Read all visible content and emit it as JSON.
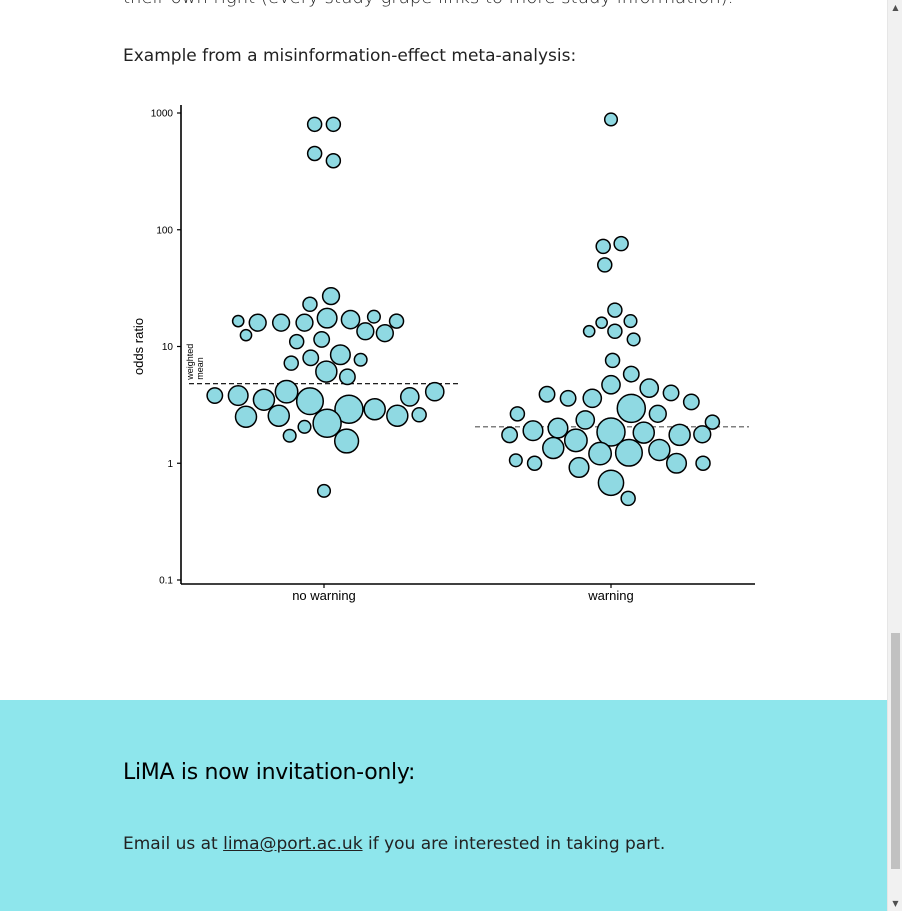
{
  "intro": {
    "cut_text": "their own right (every study-grape links to more study information).",
    "example_text": "Example from a misinformation-effect meta-analysis:"
  },
  "chart_data": {
    "type": "scatter",
    "ylabel": "odds ratio",
    "yscale": "log",
    "ylim": [
      0.1,
      1000
    ],
    "yticks": [
      0.1,
      1,
      10,
      100,
      1000
    ],
    "ytick_labels": [
      "0.1",
      "1",
      "10",
      "100",
      "1000"
    ],
    "categories": [
      "no warning",
      "warning"
    ],
    "colors": {
      "point_fill": "#8fd9e2",
      "point_stroke": "#000000"
    },
    "annotation": "weighted mean",
    "weighted_means": [
      4.8,
      2.05
    ],
    "groups": [
      {
        "category": "no warning",
        "points": [
          {
            "offset": -0.12,
            "y": 800,
            "w": 1
          },
          {
            "offset": 0.12,
            "y": 800,
            "w": 1
          },
          {
            "offset": -0.12,
            "y": 450,
            "w": 1
          },
          {
            "offset": 0.12,
            "y": 390,
            "w": 1
          },
          {
            "offset": 0.09,
            "y": 27,
            "w": 1.2
          },
          {
            "offset": -0.18,
            "y": 23,
            "w": 1
          },
          {
            "offset": -1.1,
            "y": 16.5,
            "w": 0.8
          },
          {
            "offset": -0.85,
            "y": 16,
            "w": 1.2
          },
          {
            "offset": -0.55,
            "y": 16,
            "w": 1.2
          },
          {
            "offset": -0.25,
            "y": 16,
            "w": 1.2
          },
          {
            "offset": 0.04,
            "y": 17.5,
            "w": 1.4
          },
          {
            "offset": 0.34,
            "y": 17,
            "w": 1.3
          },
          {
            "offset": 0.64,
            "y": 18,
            "w": 0.9
          },
          {
            "offset": 0.93,
            "y": 16.5,
            "w": 1
          },
          {
            "offset": -1.0,
            "y": 12.5,
            "w": 0.8
          },
          {
            "offset": -0.35,
            "y": 11,
            "w": 1
          },
          {
            "offset": -0.03,
            "y": 11.5,
            "w": 1.1
          },
          {
            "offset": 0.53,
            "y": 13.5,
            "w": 1.2
          },
          {
            "offset": 0.78,
            "y": 13,
            "w": 1.2
          },
          {
            "offset": -0.42,
            "y": 7.2,
            "w": 1
          },
          {
            "offset": -0.17,
            "y": 8,
            "w": 1.1
          },
          {
            "offset": 0.21,
            "y": 8.5,
            "w": 1.4
          },
          {
            "offset": 0.47,
            "y": 7.7,
            "w": 0.9
          },
          {
            "offset": 0.03,
            "y": 6.1,
            "w": 1.5
          },
          {
            "offset": 0.3,
            "y": 5.5,
            "w": 1.1
          },
          {
            "offset": -1.4,
            "y": 3.8,
            "w": 1.1
          },
          {
            "offset": -1.1,
            "y": 3.8,
            "w": 1.4
          },
          {
            "offset": -0.77,
            "y": 3.5,
            "w": 1.5
          },
          {
            "offset": -0.48,
            "y": 4.1,
            "w": 1.6
          },
          {
            "offset": -0.18,
            "y": 3.4,
            "w": 1.9
          },
          {
            "offset": 0.32,
            "y": 2.9,
            "w": 2
          },
          {
            "offset": 0.65,
            "y": 2.9,
            "w": 1.5
          },
          {
            "offset": 1.1,
            "y": 3.7,
            "w": 1.3
          },
          {
            "offset": 1.42,
            "y": 4.1,
            "w": 1.3
          },
          {
            "offset": -1.0,
            "y": 2.5,
            "w": 1.5
          },
          {
            "offset": -0.58,
            "y": 2.55,
            "w": 1.5
          },
          {
            "offset": 0.04,
            "y": 2.2,
            "w": 2
          },
          {
            "offset": 0.94,
            "y": 2.55,
            "w": 1.5
          },
          {
            "offset": 1.22,
            "y": 2.6,
            "w": 1
          },
          {
            "offset": -0.25,
            "y": 2.05,
            "w": 0.9
          },
          {
            "offset": -0.44,
            "y": 1.72,
            "w": 0.9
          },
          {
            "offset": 0.29,
            "y": 1.55,
            "w": 1.7
          },
          {
            "offset": 0.0,
            "y": 0.58,
            "w": 0.9
          }
        ]
      },
      {
        "category": "warning",
        "points": [
          {
            "offset": 0.0,
            "y": 880,
            "w": 0.9
          },
          {
            "offset": -0.1,
            "y": 72,
            "w": 1
          },
          {
            "offset": 0.13,
            "y": 76,
            "w": 1
          },
          {
            "offset": -0.08,
            "y": 50,
            "w": 1
          },
          {
            "offset": 0.05,
            "y": 20.5,
            "w": 1
          },
          {
            "offset": 0.25,
            "y": 16.5,
            "w": 0.9
          },
          {
            "offset": -0.12,
            "y": 16,
            "w": 0.8
          },
          {
            "offset": -0.28,
            "y": 13.5,
            "w": 0.8
          },
          {
            "offset": 0.05,
            "y": 13.5,
            "w": 1
          },
          {
            "offset": 0.29,
            "y": 11.5,
            "w": 0.9
          },
          {
            "offset": 0.02,
            "y": 7.6,
            "w": 1
          },
          {
            "offset": 0.26,
            "y": 5.8,
            "w": 1.1
          },
          {
            "offset": 0.0,
            "y": 4.7,
            "w": 1.3
          },
          {
            "offset": -0.82,
            "y": 3.9,
            "w": 1.1
          },
          {
            "offset": -0.55,
            "y": 3.6,
            "w": 1.1
          },
          {
            "offset": -0.24,
            "y": 3.6,
            "w": 1.3
          },
          {
            "offset": 0.49,
            "y": 4.4,
            "w": 1.3
          },
          {
            "offset": 0.77,
            "y": 4.0,
            "w": 1.1
          },
          {
            "offset": 1.03,
            "y": 3.35,
            "w": 1.1
          },
          {
            "offset": -1.2,
            "y": 2.65,
            "w": 1
          },
          {
            "offset": -0.33,
            "y": 2.35,
            "w": 1.3
          },
          {
            "offset": 0.26,
            "y": 2.95,
            "w": 2
          },
          {
            "offset": 0.6,
            "y": 2.65,
            "w": 1.2
          },
          {
            "offset": 1.3,
            "y": 2.25,
            "w": 1
          },
          {
            "offset": -1.3,
            "y": 1.75,
            "w": 1.1
          },
          {
            "offset": -1.0,
            "y": 1.9,
            "w": 1.4
          },
          {
            "offset": -0.68,
            "y": 2.0,
            "w": 1.4
          },
          {
            "offset": -0.45,
            "y": 1.57,
            "w": 1.6
          },
          {
            "offset": 0.0,
            "y": 1.85,
            "w": 2
          },
          {
            "offset": 0.42,
            "y": 1.83,
            "w": 1.5
          },
          {
            "offset": 0.88,
            "y": 1.75,
            "w": 1.5
          },
          {
            "offset": 1.17,
            "y": 1.77,
            "w": 1.2
          },
          {
            "offset": -0.74,
            "y": 1.35,
            "w": 1.5
          },
          {
            "offset": -0.14,
            "y": 1.21,
            "w": 1.6
          },
          {
            "offset": 0.23,
            "y": 1.23,
            "w": 1.9
          },
          {
            "offset": 0.62,
            "y": 1.3,
            "w": 1.5
          },
          {
            "offset": -1.22,
            "y": 1.06,
            "w": 0.9
          },
          {
            "offset": -0.98,
            "y": 1.0,
            "w": 1
          },
          {
            "offset": -0.41,
            "y": 0.92,
            "w": 1.4
          },
          {
            "offset": 0.84,
            "y": 1.0,
            "w": 1.4
          },
          {
            "offset": 1.18,
            "y": 1.0,
            "w": 1
          },
          {
            "offset": 0.0,
            "y": 0.68,
            "w": 1.8
          },
          {
            "offset": 0.22,
            "y": 0.5,
            "w": 1
          }
        ]
      }
    ]
  },
  "footer": {
    "heading": "LiMA is now invitation-only:",
    "text_before": "Email us at ",
    "email": "lima@port.ac.uk",
    "text_after": " if you are interested in taking part.",
    "bg_color": "#8ee6ec"
  },
  "scrollbar": {
    "up_arrow": "▲",
    "down_arrow": "▼"
  }
}
